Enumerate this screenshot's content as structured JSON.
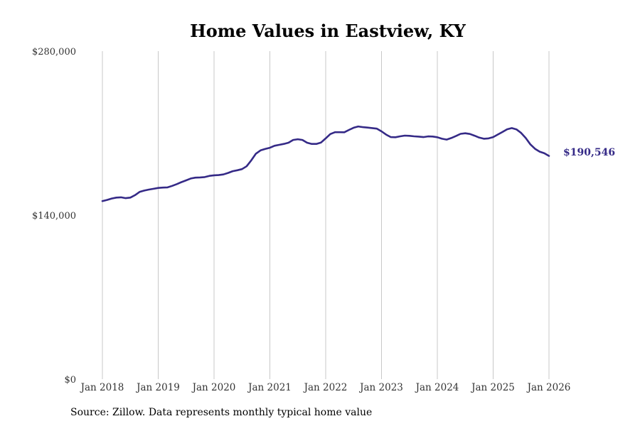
{
  "chart_data": {
    "type": "line",
    "title": "Home Values in Eastview, KY",
    "xlabel": "",
    "ylabel": "",
    "ylim": [
      0,
      280000
    ],
    "y_ticks": [
      "$0",
      "$140,000",
      "$280,000"
    ],
    "y_tick_values": [
      0,
      140000,
      280000
    ],
    "x_ticks": [
      "Jan 2018",
      "Jan 2019",
      "Jan 2020",
      "Jan 2021",
      "Jan 2022",
      "Jan 2023",
      "Jan 2024",
      "Jan 2025",
      "Jan 2026"
    ],
    "x_tick_values": [
      2018,
      2019,
      2020,
      2021,
      2022,
      2023,
      2024,
      2025,
      2026
    ],
    "grid": "vertical",
    "legend": "none",
    "end_label": "$190,546",
    "series": [
      {
        "color": "#352a87",
        "x": [
          "2018-01",
          "2018-02",
          "2018-03",
          "2018-04",
          "2018-05",
          "2018-06",
          "2018-07",
          "2018-08",
          "2018-09",
          "2018-10",
          "2018-11",
          "2018-12",
          "2019-01",
          "2019-02",
          "2019-03",
          "2019-04",
          "2019-05",
          "2019-06",
          "2019-07",
          "2019-08",
          "2019-09",
          "2019-10",
          "2019-11",
          "2019-12",
          "2020-01",
          "2020-02",
          "2020-03",
          "2020-04",
          "2020-05",
          "2020-06",
          "2020-07",
          "2020-08",
          "2020-09",
          "2020-10",
          "2020-11",
          "2020-12",
          "2021-01",
          "2021-02",
          "2021-03",
          "2021-04",
          "2021-05",
          "2021-06",
          "2021-07",
          "2021-08",
          "2021-09",
          "2021-10",
          "2021-11",
          "2021-12",
          "2022-01",
          "2022-02",
          "2022-03",
          "2022-04",
          "2022-05",
          "2022-06",
          "2022-07",
          "2022-08",
          "2022-09",
          "2022-10",
          "2022-11",
          "2022-12",
          "2023-01",
          "2023-02",
          "2023-03",
          "2023-04",
          "2023-05",
          "2023-06",
          "2023-07",
          "2023-08",
          "2023-09",
          "2023-10",
          "2023-11",
          "2023-12",
          "2024-01",
          "2024-02",
          "2024-03",
          "2024-04",
          "2024-05",
          "2024-06",
          "2024-07",
          "2024-08",
          "2024-09",
          "2024-10",
          "2024-11",
          "2024-12",
          "2025-01",
          "2025-02",
          "2025-03",
          "2025-04",
          "2025-05",
          "2025-06",
          "2025-07",
          "2025-08",
          "2025-09",
          "2025-10",
          "2025-11",
          "2025-12",
          "2026-01"
        ],
        "values": [
          152000,
          153000,
          154200,
          155000,
          155200,
          154500,
          155000,
          157000,
          159800,
          161000,
          161800,
          162500,
          163200,
          163500,
          163700,
          165000,
          166500,
          168200,
          169700,
          171300,
          172000,
          172200,
          172500,
          173500,
          174000,
          174200,
          174700,
          176000,
          177500,
          178300,
          179300,
          181700,
          186700,
          192500,
          195300,
          196500,
          197500,
          199200,
          200000,
          200800,
          201800,
          204200,
          204800,
          204200,
          201800,
          200800,
          200800,
          202000,
          205500,
          209200,
          210800,
          210800,
          210700,
          212700,
          214600,
          215700,
          215100,
          214700,
          214300,
          213800,
          211500,
          208700,
          206600,
          206500,
          207300,
          207900,
          207700,
          207300,
          207000,
          206600,
          207200,
          207100,
          206500,
          205200,
          204500,
          205800,
          207500,
          209400,
          209900,
          209300,
          207800,
          206200,
          205200,
          205500,
          206600,
          208800,
          211000,
          213300,
          214300,
          213200,
          210200,
          205800,
          200400,
          196600,
          194200,
          192800,
          190546
        ]
      }
    ]
  },
  "source_text": "Source: Zillow. Data represents monthly typical home value"
}
